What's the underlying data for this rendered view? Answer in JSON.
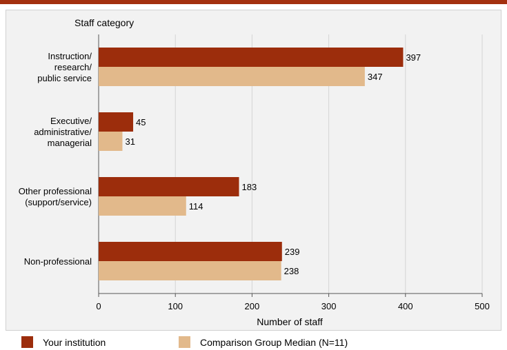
{
  "chart_data": {
    "type": "bar",
    "orientation": "horizontal",
    "ylabel": "Staff category",
    "xlabel": "Number of staff",
    "xlim": [
      0,
      500
    ],
    "xticks": [
      0,
      100,
      200,
      300,
      400,
      500
    ],
    "grid": true,
    "legend_position": "bottom",
    "categories": [
      [
        "Instruction/",
        "research/",
        "public service"
      ],
      [
        "Executive/",
        "administrative/",
        "managerial"
      ],
      [
        "Other professional",
        "(support/service)"
      ],
      [
        "Non-professional"
      ]
    ],
    "series": [
      {
        "name": "Your institution",
        "color": "#9c2d0c",
        "values": [
          397,
          45,
          183,
          239
        ]
      },
      {
        "name": "Comparison Group Median (N=11)",
        "color": "#e2b98b",
        "values": [
          347,
          31,
          114,
          238
        ]
      }
    ]
  }
}
